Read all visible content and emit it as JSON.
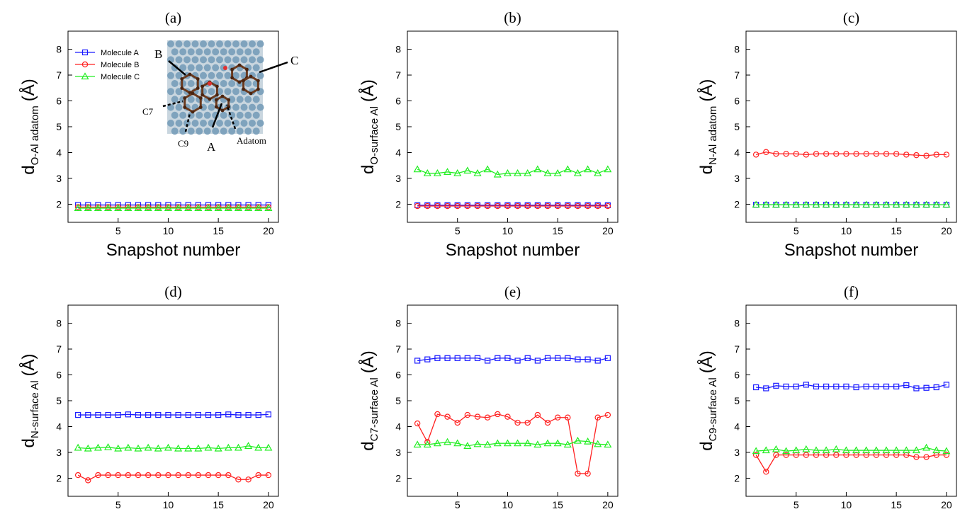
{
  "colors": {
    "molecule_a": "#1a1aff",
    "molecule_b": "#ff2020",
    "molecule_c": "#22ee22"
  },
  "legend": [
    "Molecule A",
    "Molecule B",
    "Molecule C"
  ],
  "inset": {
    "labels": [
      "B",
      "C",
      "C7",
      "C9",
      "A",
      "Adatom"
    ]
  },
  "chart_data": [
    {
      "type": "line",
      "panel": "(a)",
      "xlabel": "Snapshot number",
      "ylabel_main": "d",
      "ylabel_sub": "O-Al adatom",
      "ylabel_unit": "(Å)",
      "x": [
        1,
        2,
        3,
        4,
        5,
        6,
        7,
        8,
        9,
        10,
        11,
        12,
        13,
        14,
        15,
        16,
        17,
        18,
        19,
        20
      ],
      "xlim": [
        0,
        21
      ],
      "ylim": [
        1.3,
        8.7
      ],
      "xticks": [
        5,
        10,
        15,
        20
      ],
      "yticks": [
        2,
        3,
        4,
        5,
        6,
        7,
        8
      ],
      "legend_position": "top-left",
      "grid": false,
      "series": [
        {
          "name": "Molecule A",
          "marker": "square",
          "values": [
            1.97,
            1.97,
            1.97,
            1.97,
            1.97,
            1.97,
            1.97,
            1.97,
            1.97,
            1.97,
            1.97,
            1.97,
            1.97,
            1.97,
            1.97,
            1.97,
            1.97,
            1.97,
            1.97,
            1.97
          ]
        },
        {
          "name": "Molecule B",
          "marker": "circle",
          "values": [
            1.89,
            1.89,
            1.89,
            1.89,
            1.89,
            1.89,
            1.89,
            1.89,
            1.89,
            1.89,
            1.89,
            1.89,
            1.89,
            1.89,
            1.89,
            1.89,
            1.89,
            1.89,
            1.89,
            1.89
          ]
        },
        {
          "name": "Molecule C",
          "marker": "triangle",
          "values": [
            1.85,
            1.85,
            1.85,
            1.85,
            1.85,
            1.85,
            1.85,
            1.85,
            1.85,
            1.85,
            1.85,
            1.85,
            1.85,
            1.85,
            1.85,
            1.85,
            1.85,
            1.85,
            1.85,
            1.85
          ]
        }
      ]
    },
    {
      "type": "line",
      "panel": "(b)",
      "xlabel": "Snapshot number",
      "ylabel_main": "d",
      "ylabel_sub": "O-surface Al",
      "ylabel_unit": "(Å)",
      "x": [
        1,
        2,
        3,
        4,
        5,
        6,
        7,
        8,
        9,
        10,
        11,
        12,
        13,
        14,
        15,
        16,
        17,
        18,
        19,
        20
      ],
      "xlim": [
        0,
        21
      ],
      "ylim": [
        1.3,
        8.7
      ],
      "xticks": [
        5,
        10,
        15,
        20
      ],
      "yticks": [
        2,
        3,
        4,
        5,
        6,
        7,
        8
      ],
      "grid": false,
      "series": [
        {
          "name": "Molecule A",
          "marker": "square",
          "values": [
            1.96,
            1.96,
            1.96,
            1.96,
            1.96,
            1.96,
            1.96,
            1.96,
            1.96,
            1.96,
            1.96,
            1.96,
            1.96,
            1.96,
            1.96,
            1.96,
            1.96,
            1.96,
            1.96,
            1.96
          ]
        },
        {
          "name": "Molecule B",
          "marker": "circle",
          "values": [
            1.93,
            1.93,
            1.93,
            1.93,
            1.93,
            1.93,
            1.93,
            1.93,
            1.93,
            1.93,
            1.93,
            1.93,
            1.93,
            1.93,
            1.93,
            1.93,
            1.93,
            1.93,
            1.93,
            1.93
          ]
        },
        {
          "name": "Molecule C",
          "marker": "triangle",
          "values": [
            3.35,
            3.2,
            3.2,
            3.25,
            3.2,
            3.3,
            3.2,
            3.35,
            3.15,
            3.2,
            3.2,
            3.2,
            3.35,
            3.2,
            3.2,
            3.35,
            3.2,
            3.35,
            3.2,
            3.35
          ]
        }
      ]
    },
    {
      "type": "line",
      "panel": "(c)",
      "xlabel": "Snapshot number",
      "ylabel_main": "d",
      "ylabel_sub": "N-Al adatom",
      "ylabel_unit": "(Å)",
      "x": [
        1,
        2,
        3,
        4,
        5,
        6,
        7,
        8,
        9,
        10,
        11,
        12,
        13,
        14,
        15,
        16,
        17,
        18,
        19,
        20
      ],
      "xlim": [
        0,
        21
      ],
      "ylim": [
        1.3,
        8.7
      ],
      "xticks": [
        5,
        10,
        15,
        20
      ],
      "yticks": [
        2,
        3,
        4,
        5,
        6,
        7,
        8
      ],
      "grid": false,
      "series": [
        {
          "name": "Molecule A",
          "marker": "square",
          "values": [
            1.98,
            1.98,
            1.98,
            1.98,
            1.98,
            1.98,
            1.98,
            1.98,
            1.98,
            1.98,
            1.98,
            1.98,
            1.98,
            1.98,
            1.98,
            1.98,
            1.98,
            1.98,
            1.98,
            1.98
          ]
        },
        {
          "name": "Molecule B",
          "marker": "circle",
          "values": [
            3.92,
            4.02,
            3.95,
            3.95,
            3.95,
            3.92,
            3.95,
            3.95,
            3.95,
            3.95,
            3.95,
            3.95,
            3.95,
            3.95,
            3.95,
            3.92,
            3.9,
            3.88,
            3.92,
            3.92
          ]
        },
        {
          "name": "Molecule C",
          "marker": "triangle",
          "values": [
            1.98,
            1.98,
            1.98,
            1.98,
            1.98,
            1.98,
            1.98,
            1.98,
            1.98,
            1.98,
            1.98,
            1.98,
            1.98,
            1.98,
            1.98,
            1.98,
            1.98,
            1.98,
            1.98,
            1.98
          ]
        }
      ]
    },
    {
      "type": "line",
      "panel": "(d)",
      "xlabel": "Snapshot number",
      "ylabel_main": "d",
      "ylabel_sub": "N-surface Al",
      "ylabel_unit": "(Å)",
      "x": [
        1,
        2,
        3,
        4,
        5,
        6,
        7,
        8,
        9,
        10,
        11,
        12,
        13,
        14,
        15,
        16,
        17,
        18,
        19,
        20
      ],
      "xlim": [
        0,
        21
      ],
      "ylim": [
        1.3,
        8.7
      ],
      "xticks": [
        5,
        10,
        15,
        20
      ],
      "yticks": [
        2,
        3,
        4,
        5,
        6,
        7,
        8
      ],
      "grid": false,
      "series": [
        {
          "name": "Molecule A",
          "marker": "square",
          "values": [
            4.45,
            4.45,
            4.45,
            4.45,
            4.45,
            4.47,
            4.45,
            4.45,
            4.45,
            4.45,
            4.45,
            4.45,
            4.45,
            4.45,
            4.45,
            4.47,
            4.45,
            4.45,
            4.45,
            4.47
          ]
        },
        {
          "name": "Molecule B",
          "marker": "circle",
          "values": [
            2.12,
            1.92,
            2.12,
            2.12,
            2.12,
            2.12,
            2.12,
            2.12,
            2.12,
            2.12,
            2.12,
            2.12,
            2.12,
            2.12,
            2.12,
            2.12,
            1.95,
            1.95,
            2.12,
            2.12
          ]
        },
        {
          "name": "Molecule C",
          "marker": "triangle",
          "values": [
            3.18,
            3.15,
            3.18,
            3.2,
            3.15,
            3.18,
            3.15,
            3.18,
            3.15,
            3.18,
            3.15,
            3.15,
            3.15,
            3.18,
            3.15,
            3.18,
            3.18,
            3.25,
            3.18,
            3.18
          ]
        }
      ]
    },
    {
      "type": "line",
      "panel": "(e)",
      "xlabel": "Snapshot number",
      "ylabel_main": "d",
      "ylabel_sub": "C7-surface Al",
      "ylabel_unit": "(Å)",
      "x": [
        1,
        2,
        3,
        4,
        5,
        6,
        7,
        8,
        9,
        10,
        11,
        12,
        13,
        14,
        15,
        16,
        17,
        18,
        19,
        20
      ],
      "xlim": [
        0,
        21
      ],
      "ylim": [
        1.3,
        8.7
      ],
      "xticks": [
        5,
        10,
        15,
        20
      ],
      "yticks": [
        2,
        3,
        4,
        5,
        6,
        7,
        8
      ],
      "grid": false,
      "series": [
        {
          "name": "Molecule A",
          "marker": "square",
          "values": [
            6.55,
            6.6,
            6.65,
            6.65,
            6.65,
            6.65,
            6.65,
            6.55,
            6.65,
            6.65,
            6.55,
            6.65,
            6.55,
            6.65,
            6.65,
            6.65,
            6.6,
            6.6,
            6.55,
            6.65
          ]
        },
        {
          "name": "Molecule B",
          "marker": "circle",
          "values": [
            4.12,
            3.4,
            4.48,
            4.38,
            4.15,
            4.45,
            4.38,
            4.35,
            4.48,
            4.38,
            4.15,
            4.15,
            4.45,
            4.15,
            4.35,
            4.35,
            2.18,
            2.18,
            4.35,
            4.45
          ]
        },
        {
          "name": "Molecule C",
          "marker": "triangle",
          "values": [
            3.3,
            3.3,
            3.35,
            3.4,
            3.35,
            3.25,
            3.32,
            3.3,
            3.35,
            3.35,
            3.35,
            3.35,
            3.3,
            3.35,
            3.35,
            3.3,
            3.45,
            3.42,
            3.32,
            3.3
          ]
        }
      ]
    },
    {
      "type": "line",
      "panel": "(f)",
      "xlabel": "Snapshot number",
      "ylabel_main": "d",
      "ylabel_sub": "C9-surface Al",
      "ylabel_unit": "(Å)",
      "x": [
        1,
        2,
        3,
        4,
        5,
        6,
        7,
        8,
        9,
        10,
        11,
        12,
        13,
        14,
        15,
        16,
        17,
        18,
        19,
        20
      ],
      "xlim": [
        0,
        21
      ],
      "ylim": [
        1.3,
        8.7
      ],
      "xticks": [
        5,
        10,
        15,
        20
      ],
      "yticks": [
        2,
        3,
        4,
        5,
        6,
        7,
        8
      ],
      "grid": false,
      "series": [
        {
          "name": "Molecule A",
          "marker": "square",
          "values": [
            5.52,
            5.48,
            5.58,
            5.55,
            5.55,
            5.62,
            5.55,
            5.55,
            5.55,
            5.55,
            5.52,
            5.55,
            5.55,
            5.55,
            5.55,
            5.6,
            5.48,
            5.5,
            5.52,
            5.62
          ]
        },
        {
          "name": "Molecule B",
          "marker": "circle",
          "values": [
            2.9,
            2.25,
            2.9,
            2.9,
            2.9,
            2.9,
            2.9,
            2.9,
            2.9,
            2.9,
            2.9,
            2.9,
            2.9,
            2.9,
            2.9,
            2.9,
            2.82,
            2.82,
            2.9,
            2.9
          ]
        },
        {
          "name": "Molecule C",
          "marker": "triangle",
          "values": [
            3.05,
            3.08,
            3.12,
            3.05,
            3.08,
            3.12,
            3.08,
            3.08,
            3.12,
            3.08,
            3.08,
            3.08,
            3.08,
            3.08,
            3.08,
            3.08,
            3.08,
            3.18,
            3.08,
            3.05
          ]
        }
      ]
    }
  ]
}
